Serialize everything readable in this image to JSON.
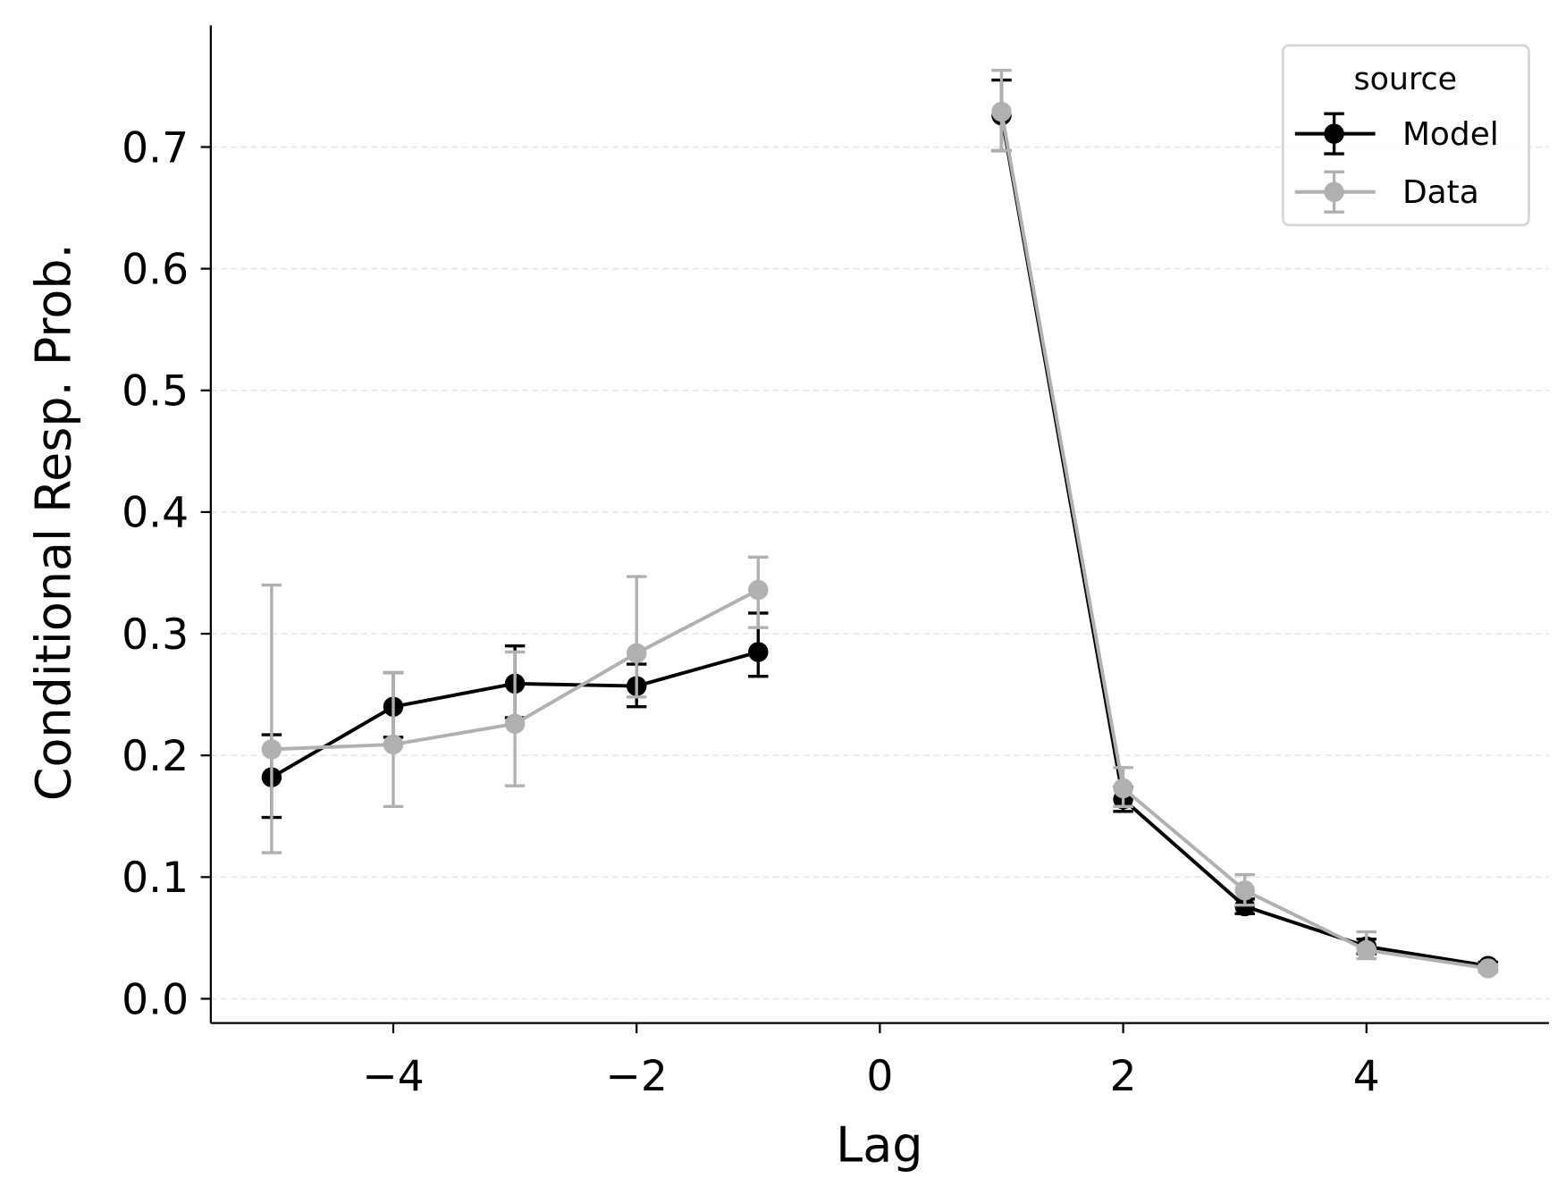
{
  "chart_data": {
    "type": "line",
    "title": "",
    "xlabel": "Lag",
    "ylabel": "Conditional Resp. Prob.",
    "xlim": [
      -5.5,
      5.5
    ],
    "ylim": [
      -0.02,
      0.8
    ],
    "xticks": [
      -4,
      -2,
      0,
      2,
      4
    ],
    "xtick_labels": [
      "−4",
      "−2",
      "0",
      "2",
      "4"
    ],
    "yticks": [
      0.0,
      0.1,
      0.2,
      0.3,
      0.4,
      0.5,
      0.6,
      0.7
    ],
    "ytick_labels": [
      "0.0",
      "0.1",
      "0.2",
      "0.3",
      "0.4",
      "0.5",
      "0.6",
      "0.7"
    ],
    "grid": "horizontal dashed",
    "legend": {
      "title": "source",
      "placement": "top-right"
    },
    "series": [
      {
        "name": "Model",
        "color": "#000000",
        "x": [
          -5,
          -4,
          -3,
          -2,
          -1,
          1,
          2,
          3,
          4,
          5
        ],
        "y": [
          0.182,
          0.24,
          0.259,
          0.257,
          0.285,
          0.726,
          0.164,
          0.076,
          0.043,
          0.027
        ],
        "err_low": [
          0.149,
          0.215,
          0.231,
          0.24,
          0.265,
          0.697,
          0.154,
          0.07,
          0.037,
          0.024
        ],
        "err_high": [
          0.217,
          0.268,
          0.29,
          0.275,
          0.317,
          0.755,
          0.174,
          0.082,
          0.049,
          0.03
        ]
      },
      {
        "name": "Data",
        "color": "#b0b0b0",
        "x": [
          -5,
          -4,
          -3,
          -2,
          -1,
          1,
          2,
          3,
          4,
          5
        ],
        "y": [
          0.205,
          0.209,
          0.226,
          0.284,
          0.336,
          0.729,
          0.173,
          0.089,
          0.04,
          0.025
        ],
        "err_low": [
          0.12,
          0.158,
          0.175,
          0.248,
          0.305,
          0.697,
          0.158,
          0.077,
          0.033,
          0.022
        ],
        "err_high": [
          0.34,
          0.268,
          0.285,
          0.347,
          0.363,
          0.763,
          0.19,
          0.102,
          0.055,
          0.028
        ]
      }
    ]
  }
}
